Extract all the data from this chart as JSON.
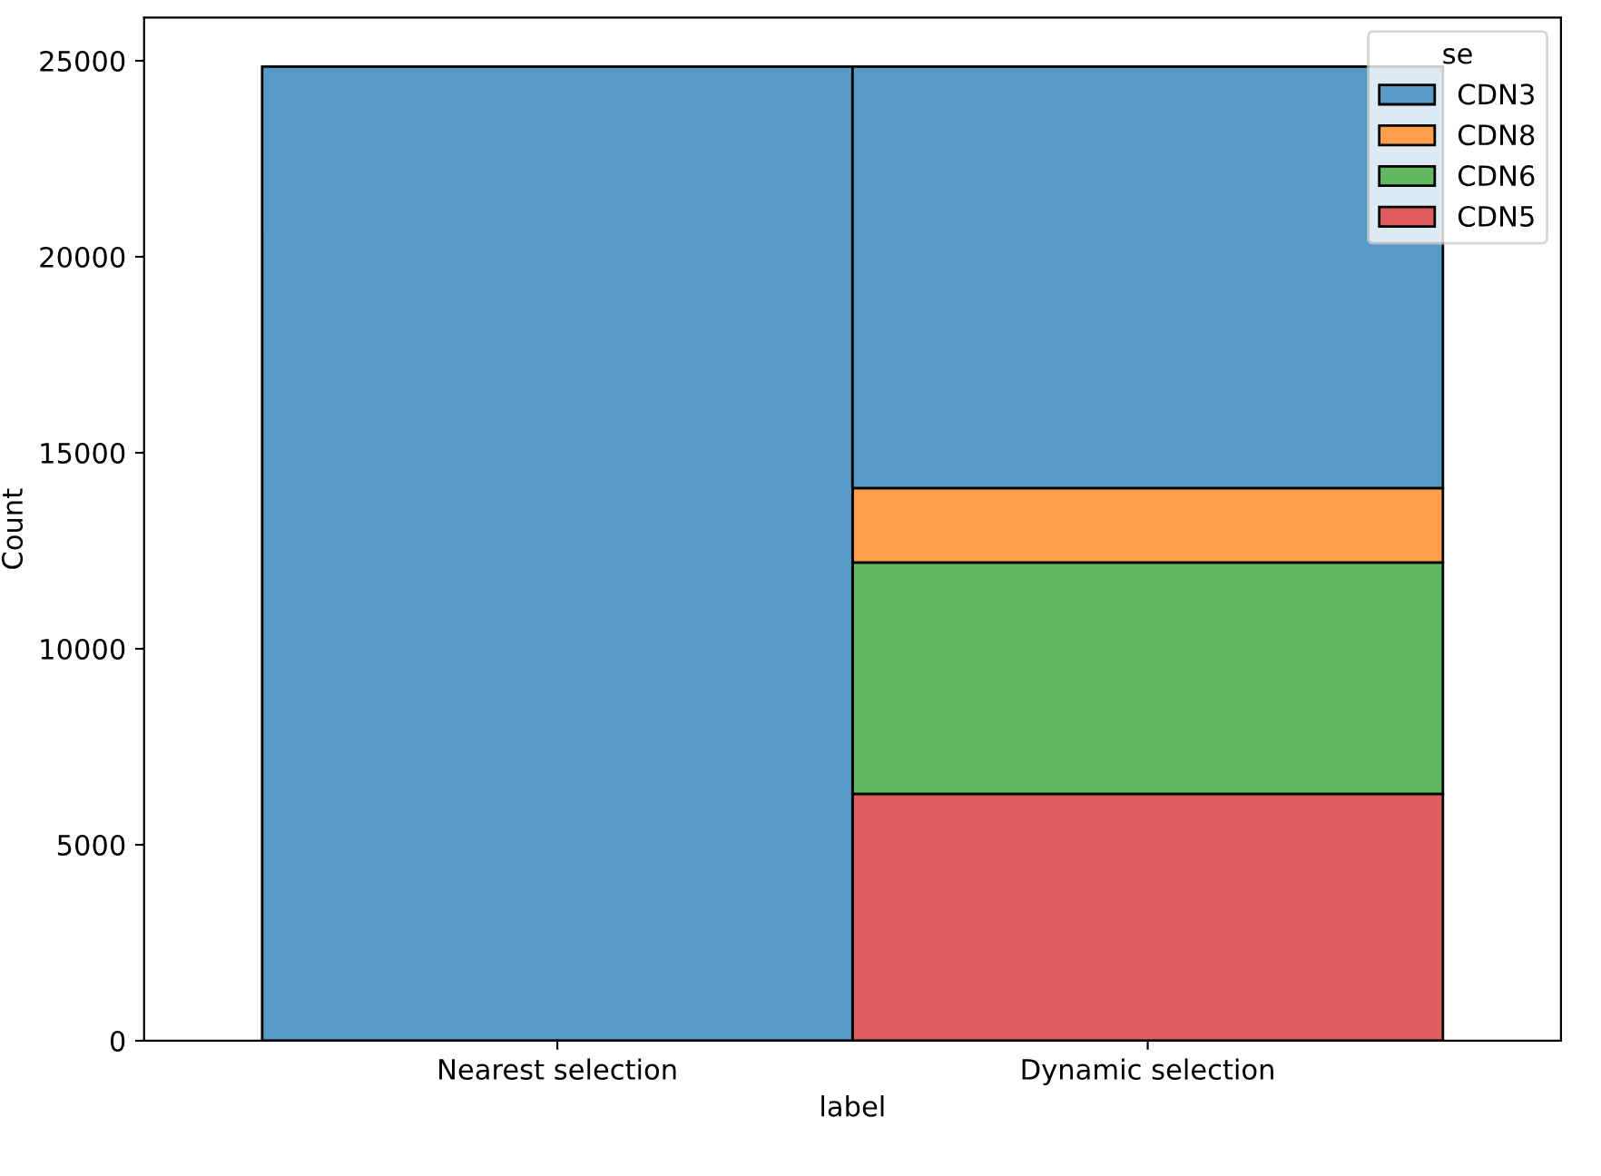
{
  "chart_data": {
    "type": "bar",
    "stacked": true,
    "xlabel": "label",
    "ylabel": "Count",
    "legend_title": "se",
    "legend": "top right",
    "categories": [
      "Nearest selection",
      "Dynamic selection"
    ],
    "series": [
      {
        "name": "CDN5",
        "color": "#e05d5e",
        "values": [
          null,
          6300
        ]
      },
      {
        "name": "CDN6",
        "color": "#61b861",
        "values": [
          null,
          5900
        ]
      },
      {
        "name": "CDN8",
        "color": "#ff9f4a",
        "values": [
          null,
          1900
        ]
      },
      {
        "name": "CDN3",
        "color": "#5799c7",
        "values": [
          24850,
          10750
        ]
      }
    ],
    "ylim": [
      0,
      26100
    ],
    "yticks": [
      0,
      5000,
      10000,
      15000,
      20000,
      25000
    ],
    "grid": false
  }
}
